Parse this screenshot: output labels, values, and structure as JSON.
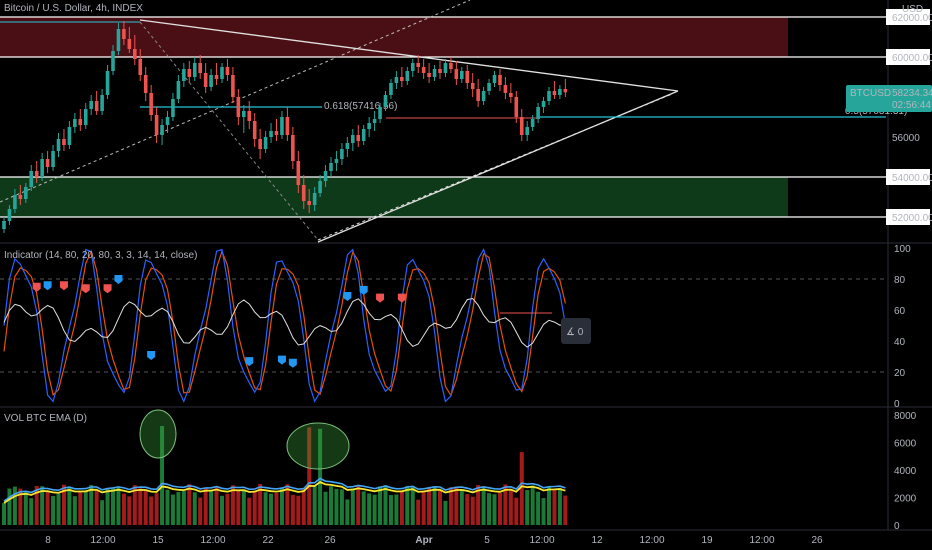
{
  "header": {
    "title": "Bitcoin / U.S. Dollar, 4h, INDEX",
    "currency": "USD"
  },
  "colors": {
    "bull": "#26a69a",
    "bear": "#ef5350",
    "resistance_zone": "#4a0f14",
    "support_zone": "#0f3a1a",
    "cyan": "#26c6da",
    "yellow": "#f7e733",
    "blue": "#2196f3",
    "osc_blue": "#2962ff",
    "osc_orange": "#e65100",
    "ema_blue": "#42a5f5"
  },
  "chart_data": [
    {
      "type": "candlestick",
      "name": "price",
      "yaxis_labels": [
        "62000.00",
        "60000.00",
        "56000",
        "54000.00",
        "52000.00"
      ],
      "price_tag": {
        "symbol": "BTCUSD",
        "price": "58234.34",
        "countdown": "02:56:44"
      },
      "fib_labels": [
        {
          "text": "0.618(57416.56)",
          "price": 57416.56
        },
        {
          "text": "0.5(57031.31)",
          "price": 57031.31
        }
      ],
      "horizontal_levels": [
        62000,
        60000,
        54000,
        52000
      ],
      "zones": [
        {
          "kind": "resistance",
          "from": 60000,
          "to": 62000
        },
        {
          "kind": "support",
          "from": 52000,
          "to": 54000
        }
      ],
      "ohlc": [
        [
          51400,
          52000,
          51200,
          51800
        ],
        [
          51800,
          52600,
          51600,
          52400
        ],
        [
          52400,
          53400,
          52200,
          53100
        ],
        [
          53100,
          53600,
          52600,
          52900
        ],
        [
          52900,
          53700,
          52700,
          53500
        ],
        [
          53500,
          54600,
          53300,
          54300
        ],
        [
          54300,
          54800,
          53700,
          54000
        ],
        [
          54000,
          55200,
          53800,
          54900
        ],
        [
          54900,
          55300,
          54200,
          54500
        ],
        [
          54500,
          55600,
          54300,
          55300
        ],
        [
          55300,
          56200,
          55000,
          55900
        ],
        [
          55900,
          56400,
          55300,
          55600
        ],
        [
          55600,
          56800,
          55400,
          56500
        ],
        [
          56500,
          57200,
          56200,
          56900
        ],
        [
          56900,
          57400,
          56300,
          56600
        ],
        [
          56600,
          57700,
          56400,
          57400
        ],
        [
          57400,
          58100,
          57100,
          57800
        ],
        [
          57800,
          58300,
          57100,
          57300
        ],
        [
          57300,
          58400,
          57100,
          58100
        ],
        [
          58100,
          59600,
          57900,
          59300
        ],
        [
          59300,
          60600,
          59100,
          60300
        ],
        [
          60300,
          61700,
          60100,
          61400
        ],
        [
          61400,
          61800,
          60600,
          60900
        ],
        [
          60900,
          61500,
          60200,
          60400
        ],
        [
          60400,
          61100,
          59600,
          59900
        ],
        [
          59900,
          60400,
          58800,
          59100
        ],
        [
          59100,
          59500,
          57800,
          58200
        ],
        [
          58200,
          58600,
          56800,
          57100
        ],
        [
          57100,
          57500,
          55700,
          56100
        ],
        [
          56100,
          56900,
          55600,
          56600
        ],
        [
          56600,
          57300,
          56200,
          57000
        ],
        [
          57000,
          58200,
          56800,
          57900
        ],
        [
          57900,
          59100,
          57700,
          58800
        ],
        [
          58800,
          59700,
          58500,
          59400
        ],
        [
          59400,
          59800,
          58700,
          59000
        ],
        [
          59000,
          60000,
          58800,
          59700
        ],
        [
          59700,
          60100,
          58900,
          59200
        ],
        [
          59200,
          59700,
          58200,
          58500
        ],
        [
          58500,
          59400,
          58300,
          59100
        ],
        [
          59100,
          59700,
          58600,
          58900
        ],
        [
          58900,
          59700,
          58700,
          59500
        ],
        [
          59500,
          59900,
          58800,
          59100
        ],
        [
          59100,
          59500,
          57700,
          58000
        ],
        [
          58000,
          58400,
          56600,
          57000
        ],
        [
          57000,
          57600,
          56200,
          57300
        ],
        [
          57300,
          57800,
          56400,
          56800
        ],
        [
          56800,
          57200,
          55500,
          55900
        ],
        [
          55900,
          56400,
          54900,
          55400
        ],
        [
          55400,
          56300,
          55200,
          56000
        ],
        [
          56000,
          56700,
          55700,
          56300
        ],
        [
          56300,
          56900,
          55800,
          56100
        ],
        [
          56100,
          57300,
          55900,
          57000
        ],
        [
          57000,
          57500,
          55800,
          56100
        ],
        [
          56100,
          56500,
          54400,
          54800
        ],
        [
          54800,
          55300,
          53200,
          53600
        ],
        [
          53600,
          54100,
          52400,
          52800
        ],
        [
          52800,
          53400,
          52200,
          52600
        ],
        [
          52600,
          53500,
          52300,
          53200
        ],
        [
          53200,
          54100,
          53000,
          53800
        ],
        [
          53800,
          54600,
          53500,
          54300
        ],
        [
          54300,
          55000,
          54000,
          54700
        ],
        [
          54700,
          55300,
          54300,
          54900
        ],
        [
          54900,
          55700,
          54600,
          55400
        ],
        [
          55400,
          56000,
          55000,
          55700
        ],
        [
          55700,
          56400,
          55300,
          56100
        ],
        [
          56100,
          56600,
          55500,
          55800
        ],
        [
          55800,
          56600,
          55600,
          56400
        ],
        [
          56400,
          57000,
          56000,
          56700
        ],
        [
          56700,
          57300,
          56300,
          56900
        ],
        [
          56900,
          57700,
          56700,
          57500
        ],
        [
          57500,
          58300,
          57300,
          58100
        ],
        [
          58100,
          58900,
          57900,
          58700
        ],
        [
          58700,
          59300,
          58400,
          59000
        ],
        [
          59000,
          59500,
          58500,
          58800
        ],
        [
          58800,
          59500,
          58600,
          59300
        ],
        [
          59300,
          59900,
          59000,
          59700
        ],
        [
          59700,
          60100,
          59200,
          59500
        ],
        [
          59500,
          59900,
          58900,
          59200
        ],
        [
          59200,
          59700,
          58700,
          59000
        ],
        [
          59000,
          59600,
          58800,
          59400
        ],
        [
          59400,
          59800,
          58900,
          59200
        ],
        [
          59200,
          59900,
          59000,
          59700
        ],
        [
          59700,
          60000,
          59200,
          59400
        ],
        [
          59400,
          59800,
          58600,
          58900
        ],
        [
          58900,
          59500,
          58700,
          59300
        ],
        [
          59300,
          59600,
          58400,
          58700
        ],
        [
          58700,
          59200,
          58000,
          58400
        ],
        [
          58400,
          58900,
          57500,
          57800
        ],
        [
          57800,
          58500,
          57600,
          58300
        ],
        [
          58300,
          58900,
          58100,
          58700
        ],
        [
          58700,
          59300,
          58500,
          59100
        ],
        [
          59100,
          59400,
          58300,
          58600
        ],
        [
          58600,
          59000,
          57900,
          58200
        ],
        [
          58200,
          58700,
          57700,
          58000
        ],
        [
          58000,
          58300,
          56700,
          57000
        ],
        [
          57000,
          57400,
          55800,
          56100
        ],
        [
          56100,
          56800,
          55800,
          56500
        ],
        [
          56500,
          57100,
          56300,
          56900
        ],
        [
          56900,
          57700,
          56700,
          57500
        ],
        [
          57500,
          58000,
          57200,
          57800
        ],
        [
          57800,
          58500,
          57600,
          58300
        ],
        [
          58300,
          58800,
          57900,
          58100
        ],
        [
          58100,
          58600,
          57900,
          58400
        ],
        [
          58400,
          58900,
          58000,
          58234
        ]
      ],
      "osc_markers": [
        {
          "bar": 6,
          "value": 75,
          "kind": "down"
        },
        {
          "bar": 8,
          "value": 76,
          "kind": "up"
        },
        {
          "bar": 11,
          "value": 76,
          "kind": "down"
        },
        {
          "bar": 15,
          "value": 74,
          "kind": "down"
        },
        {
          "bar": 19,
          "value": 74,
          "kind": "down"
        },
        {
          "bar": 21,
          "value": 80,
          "kind": "up"
        },
        {
          "bar": 27,
          "value": 31,
          "kind": "up"
        },
        {
          "bar": 45,
          "value": 27,
          "kind": "up"
        },
        {
          "bar": 51,
          "value": 28,
          "kind": "up"
        },
        {
          "bar": 53,
          "value": 26,
          "kind": "up"
        },
        {
          "bar": 63,
          "value": 69,
          "kind": "up"
        },
        {
          "bar": 66,
          "value": 73,
          "kind": "up"
        },
        {
          "bar": 69,
          "value": 68,
          "kind": "down"
        },
        {
          "bar": 73,
          "value": 68,
          "kind": "down"
        }
      ]
    },
    {
      "type": "line",
      "name": "Indicator (14, 80, 20, 80, 3, 3, 14, 14, close)",
      "yaxis_labels": [
        "100",
        "80",
        "60",
        "40",
        "20",
        "0"
      ],
      "levels": [
        80,
        20
      ],
      "ylim": [
        0,
        100
      ]
    },
    {
      "type": "bar",
      "name": "VOL BTC EMA (D)",
      "yaxis_labels": [
        "8000",
        "6000",
        "4000",
        "2000",
        "0"
      ],
      "ylim": [
        0,
        8000
      ]
    }
  ],
  "xaxis_labels": [
    "8",
    "12:00",
    "15",
    "12:00",
    "22",
    "26",
    "Apr",
    "5",
    "12:00",
    "12",
    "12:00",
    "19",
    "12:00",
    "26"
  ],
  "toolbar": {
    "toggle_label": "0"
  }
}
